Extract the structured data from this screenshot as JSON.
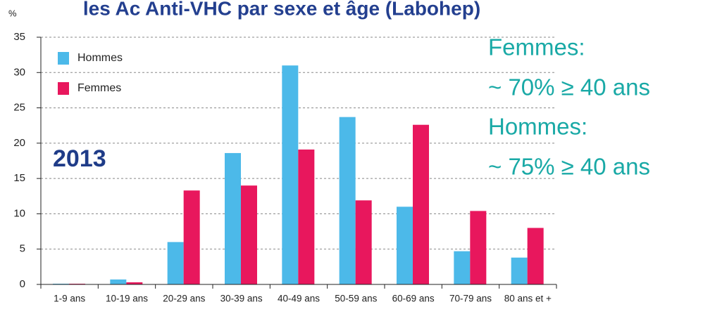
{
  "chart_data": {
    "type": "bar",
    "title": "les Ac Anti-VHC par sexe et âge (Labohep)",
    "y_label": "%",
    "annotations": [
      "2013",
      "Femmes:",
      "~ 70% ≥ 40 ans",
      "Hommes:",
      "~ 75% ≥ 40 ans"
    ],
    "categories": [
      "1-9 ans",
      "10-19 ans",
      "20-29 ans",
      "30-39 ans",
      "40-49 ans",
      "50-59 ans",
      "60-69 ans",
      "70-79 ans",
      "80 ans et +"
    ],
    "series": [
      {
        "name": "Hommes",
        "color": "#4cb9e9",
        "values": [
          0.1,
          0.7,
          6,
          18.6,
          31,
          23.7,
          11,
          4.7,
          3.8
        ]
      },
      {
        "name": "Femmes",
        "color": "#e8175d",
        "values": [
          0.1,
          0.3,
          13.3,
          14,
          19.1,
          11.9,
          22.6,
          10.4,
          8
        ]
      }
    ],
    "ylim": [
      0,
      35
    ],
    "yticks": [
      0,
      5,
      10,
      15,
      20,
      25,
      30,
      35
    ],
    "grid": true,
    "legend": "upper left"
  }
}
